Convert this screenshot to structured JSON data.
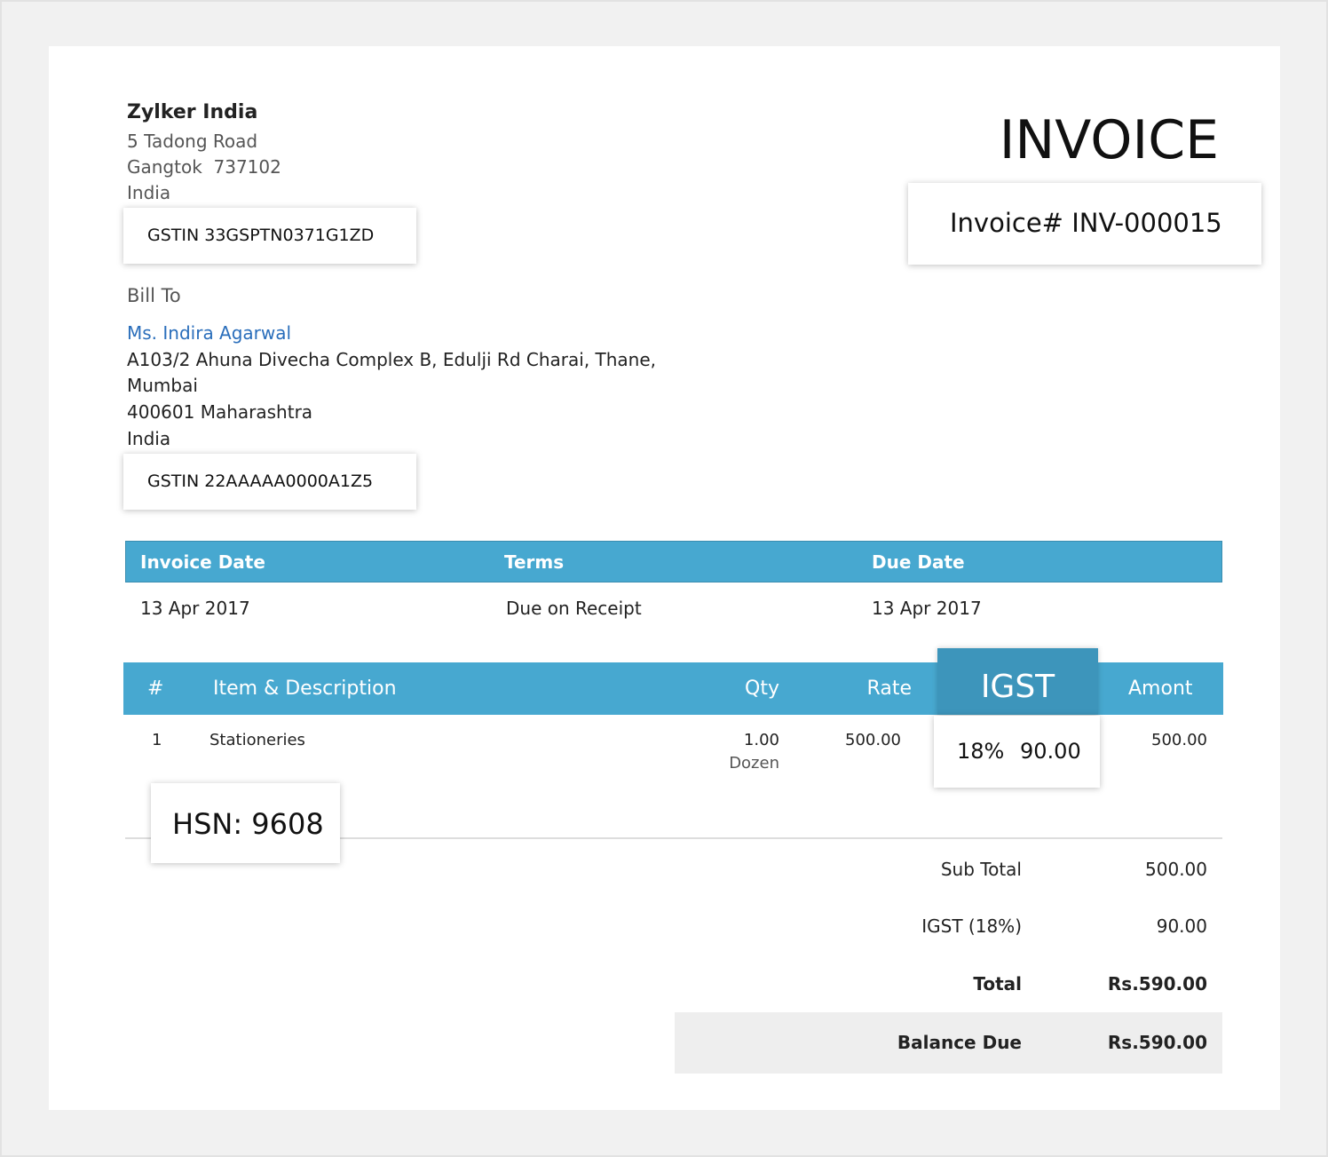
{
  "company": {
    "name": "Zylker India",
    "address": [
      "5 Tadong Road",
      "Gangtok  737102",
      "India"
    ],
    "gstin": "GSTIN 33GSPTN0371G1ZD"
  },
  "title": "INVOICE",
  "invoice_number": "Invoice# INV-000015",
  "bill_to": {
    "label": "Bill To",
    "name": "Ms. Indira Agarwal",
    "address": [
      "A103/2 Ahuna Divecha Complex B, Edulji Rd Charai, Thane,",
      "Mumbai",
      "400601 Maharashtra",
      "India"
    ],
    "gstin": "GSTIN 22AAAAA0000A1Z5"
  },
  "info_table": {
    "headers": [
      "Invoice Date",
      "Terms",
      "Due Date"
    ],
    "row": [
      "13 Apr 2017",
      "Due on Receipt",
      "13 Apr 2017"
    ]
  },
  "items_table": {
    "headers": [
      "#",
      "Item & Description",
      "Qty",
      "Rate",
      "IGST",
      "Amont"
    ],
    "rows": [
      {
        "index": "1",
        "item": "Stationeries",
        "qty": "1.00",
        "unit": "Dozen",
        "rate": "500.00",
        "igst_rate": "18%",
        "igst_amount": "90.00",
        "amount": "500.00"
      }
    ]
  },
  "hsn": "HSN: 9608",
  "totals": [
    {
      "label": "Sub Total",
      "value": "500.00"
    },
    {
      "label": "IGST (18%)",
      "value": "90.00"
    },
    {
      "label": "Total",
      "value": "Rs.590.00"
    },
    {
      "label": "Balance Due",
      "value": "Rs.590.00"
    }
  ]
}
